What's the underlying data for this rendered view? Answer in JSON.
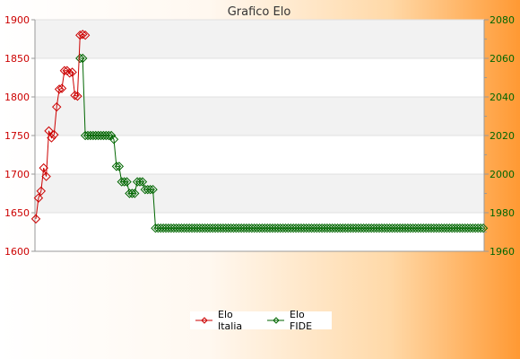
{
  "chart_data": {
    "type": "line",
    "title": "Grafico Elo",
    "legend_position": "bottom-center",
    "grid": true,
    "y_left": {
      "min": 1600,
      "max": 1900,
      "ticks": [
        1600,
        1650,
        1700,
        1750,
        1800,
        1850,
        1900
      ]
    },
    "y_right": {
      "min": 1960,
      "max": 2080,
      "ticks": [
        1960,
        1980,
        2000,
        2020,
        2040,
        2060,
        2080
      ]
    },
    "series": [
      {
        "name": "Elo Italia",
        "axis": "left",
        "color": "#cc0000",
        "values": [
          1642,
          1669,
          1678,
          1708,
          1697,
          1756,
          1747,
          1751,
          1787,
          1810,
          1811,
          1834,
          1834,
          1831,
          1832,
          1802,
          1801,
          1880,
          1881,
          1880
        ]
      },
      {
        "name": "Elo FIDE",
        "axis": "right",
        "color": "#006600",
        "x_start": 17,
        "values": [
          2060,
          2060,
          2020,
          2020,
          2020,
          2020,
          2020,
          2020,
          2020,
          2020,
          2020,
          2020,
          2020,
          2018,
          2004,
          2004,
          1996,
          1996,
          1996,
          1990,
          1990,
          1990,
          1996,
          1996,
          1996,
          1992,
          1992,
          1992,
          1992,
          1972,
          1972,
          1972,
          1972,
          1972,
          1972,
          1972,
          1972,
          1972,
          1972,
          1972,
          1972,
          1972,
          1972,
          1972,
          1972,
          1972,
          1972,
          1972,
          1972,
          1972,
          1972,
          1972,
          1972,
          1972,
          1972,
          1972,
          1972,
          1972,
          1972,
          1972,
          1972,
          1972,
          1972,
          1972,
          1972,
          1972,
          1972,
          1972,
          1972,
          1972,
          1972,
          1972,
          1972,
          1972,
          1972,
          1972,
          1972,
          1972,
          1972,
          1972,
          1972,
          1972,
          1972,
          1972,
          1972,
          1972,
          1972,
          1972,
          1972,
          1972,
          1972,
          1972,
          1972,
          1972,
          1972,
          1972,
          1972,
          1972,
          1972,
          1972,
          1972,
          1972,
          1972,
          1972,
          1972,
          1972,
          1972,
          1972,
          1972,
          1972,
          1972,
          1972,
          1972,
          1972,
          1972,
          1972,
          1972,
          1972,
          1972,
          1972,
          1972,
          1972,
          1972,
          1972,
          1972,
          1972,
          1972,
          1972,
          1972,
          1972,
          1972,
          1972,
          1972,
          1972,
          1972,
          1972,
          1972,
          1972,
          1972,
          1972,
          1972,
          1972,
          1972,
          1972,
          1972,
          1972,
          1972,
          1972,
          1972,
          1972,
          1972,
          1972,
          1972,
          1972,
          1972,
          1972
        ]
      }
    ]
  },
  "colors": {
    "band": "#f2f2f2",
    "grid": "#e0e0e0",
    "axis": "#999999",
    "italia": "#cc0000",
    "fide": "#006600"
  }
}
